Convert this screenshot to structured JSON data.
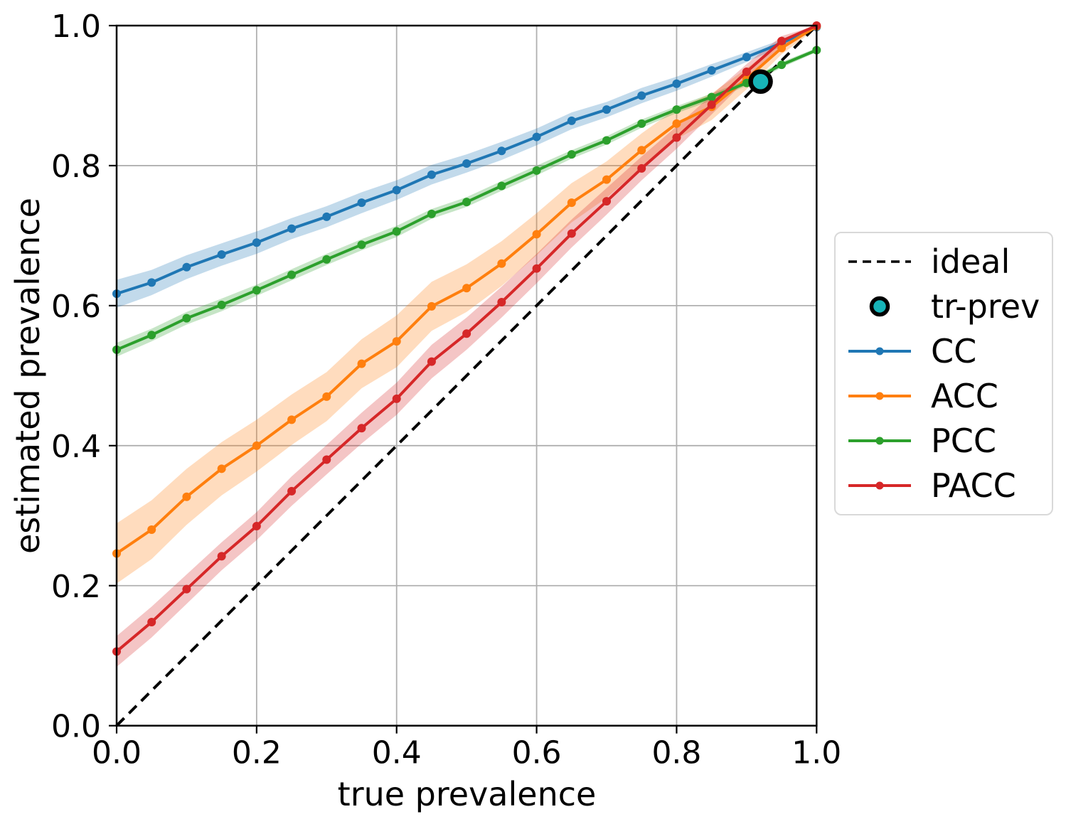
{
  "figure": {
    "background": "#ffffff"
  },
  "chart_data": {
    "type": "line",
    "title": "",
    "xlabel": "true prevalence",
    "ylabel": "estimated prevalence",
    "xlim": [
      0.0,
      1.0
    ],
    "ylim": [
      0.0,
      1.0
    ],
    "grid": true,
    "x_tick_labels": [
      "0.0",
      "0.2",
      "0.4",
      "0.6",
      "0.8",
      "1.0"
    ],
    "y_tick_labels": [
      "0.0",
      "0.2",
      "0.4",
      "0.6",
      "0.8",
      "1.0"
    ],
    "x": [
      0.0,
      0.05,
      0.1,
      0.15,
      0.2,
      0.25,
      0.3,
      0.35,
      0.4,
      0.45,
      0.5,
      0.55,
      0.6,
      0.65,
      0.7,
      0.75,
      0.8,
      0.85,
      0.9,
      0.95,
      1.0
    ],
    "series": [
      {
        "name": "CC",
        "color": "#1f77b4",
        "values": [
          0.617,
          0.633,
          0.655,
          0.673,
          0.69,
          0.71,
          0.727,
          0.747,
          0.765,
          0.787,
          0.803,
          0.821,
          0.841,
          0.864,
          0.88,
          0.9,
          0.917,
          0.936,
          0.955,
          0.975,
          0.998
        ],
        "band_halfwidth": [
          0.02,
          0.018,
          0.017,
          0.016,
          0.016,
          0.015,
          0.015,
          0.015,
          0.014,
          0.014,
          0.013,
          0.013,
          0.012,
          0.012,
          0.011,
          0.011,
          0.01,
          0.009,
          0.007,
          0.005,
          0.002
        ]
      },
      {
        "name": "ACC",
        "color": "#ff7f0e",
        "values": [
          0.246,
          0.28,
          0.327,
          0.367,
          0.4,
          0.437,
          0.47,
          0.517,
          0.549,
          0.599,
          0.625,
          0.66,
          0.702,
          0.747,
          0.78,
          0.822,
          0.86,
          0.884,
          0.924,
          0.968,
          0.999
        ],
        "band_halfwidth": [
          0.043,
          0.042,
          0.04,
          0.038,
          0.037,
          0.036,
          0.035,
          0.035,
          0.037,
          0.035,
          0.034,
          0.032,
          0.03,
          0.028,
          0.026,
          0.024,
          0.022,
          0.019,
          0.015,
          0.009,
          0.003
        ]
      },
      {
        "name": "PCC",
        "color": "#2ca02c",
        "values": [
          0.537,
          0.558,
          0.582,
          0.601,
          0.622,
          0.644,
          0.666,
          0.687,
          0.706,
          0.731,
          0.748,
          0.771,
          0.793,
          0.816,
          0.836,
          0.86,
          0.88,
          0.898,
          0.918,
          0.944,
          0.965
        ],
        "band_halfwidth": [
          0.01,
          0.009,
          0.009,
          0.009,
          0.008,
          0.008,
          0.008,
          0.008,
          0.008,
          0.007,
          0.007,
          0.007,
          0.007,
          0.006,
          0.006,
          0.006,
          0.005,
          0.005,
          0.004,
          0.004,
          0.003
        ]
      },
      {
        "name": "PACC",
        "color": "#d62728",
        "values": [
          0.106,
          0.148,
          0.195,
          0.242,
          0.285,
          0.335,
          0.38,
          0.425,
          0.467,
          0.52,
          0.56,
          0.605,
          0.653,
          0.703,
          0.749,
          0.796,
          0.84,
          0.887,
          0.934,
          0.978,
          1.0
        ],
        "band_halfwidth": [
          0.022,
          0.022,
          0.021,
          0.02,
          0.02,
          0.021,
          0.021,
          0.022,
          0.023,
          0.024,
          0.023,
          0.022,
          0.021,
          0.02,
          0.019,
          0.017,
          0.016,
          0.014,
          0.011,
          0.007,
          0.002
        ]
      }
    ],
    "ideal_line": {
      "label": "ideal",
      "from": [
        0.0,
        0.0
      ],
      "to": [
        1.0,
        1.0
      ],
      "color": "#000000",
      "style": "dashed"
    },
    "tr_prev_marker": {
      "label": "tr-prev",
      "x": 0.92,
      "y": 0.92,
      "fill": "#17b4b8",
      "edge": "#000000"
    },
    "legend": {
      "position": "center-right",
      "items": [
        {
          "label": "ideal",
          "glyph": "dashed-line",
          "color": "#000000"
        },
        {
          "label": "tr-prev",
          "glyph": "big-dot",
          "color": "#17b4b8"
        },
        {
          "label": "CC",
          "glyph": "line-marker",
          "color": "#1f77b4"
        },
        {
          "label": "ACC",
          "glyph": "line-marker",
          "color": "#ff7f0e"
        },
        {
          "label": "PCC",
          "glyph": "line-marker",
          "color": "#2ca02c"
        },
        {
          "label": "PACC",
          "glyph": "line-marker",
          "color": "#d62728"
        }
      ]
    },
    "style": {
      "grid_color": "#b0b0b0",
      "axis_color": "#000000",
      "band_opacity": 0.27
    }
  }
}
